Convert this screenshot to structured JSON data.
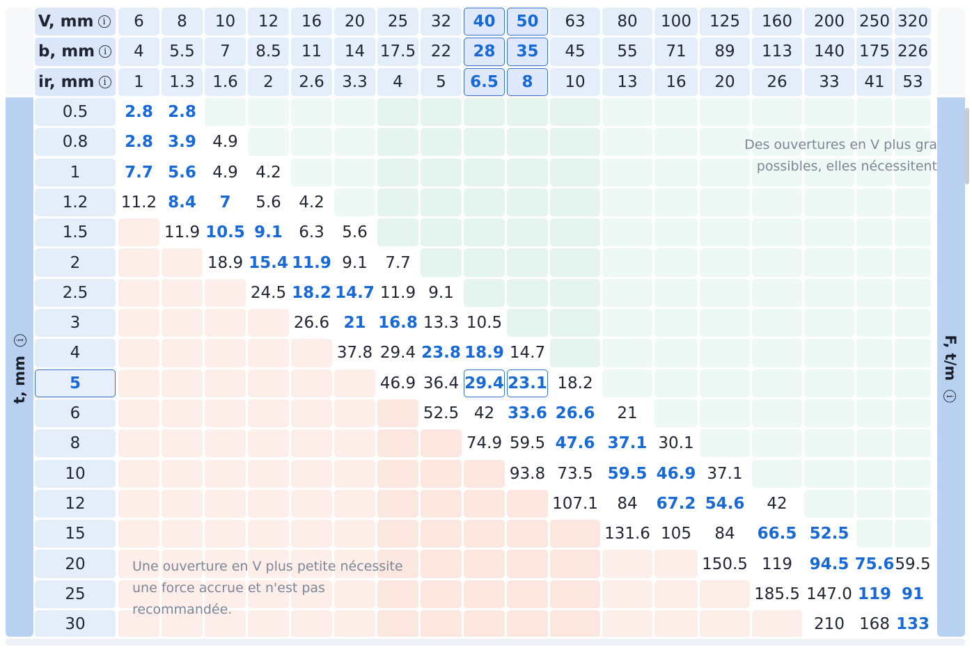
{
  "row_axis_label": "t, mm",
  "col_axis_label": "F, t/m",
  "info_glyph": "i",
  "header_rows": [
    {
      "label": "V, mm",
      "values": [
        "6",
        "8",
        "10",
        "12",
        "16",
        "20",
        "25",
        "32",
        "40",
        "50",
        "63",
        "80",
        "100",
        "125",
        "160",
        "200",
        "250",
        "320"
      ]
    },
    {
      "label": "b, mm",
      "values": [
        "4",
        "5.5",
        "7",
        "8.5",
        "11",
        "14",
        "17.5",
        "22",
        "28",
        "35",
        "45",
        "55",
        "71",
        "89",
        "113",
        "140",
        "175",
        "226"
      ]
    },
    {
      "label": "ir, mm",
      "values": [
        "1",
        "1.3",
        "1.6",
        "2",
        "2.6",
        "3.3",
        "4",
        "5",
        "6.5",
        "8",
        "10",
        "13",
        "16",
        "20",
        "26",
        "33",
        "41",
        "53"
      ]
    }
  ],
  "highlighted_columns": [
    8,
    9
  ],
  "highlighted_row": 9,
  "rows": [
    {
      "t": "0.5",
      "cells": [
        "2.8*",
        "2.8*",
        "",
        "",
        "",
        "",
        "",
        "",
        "",
        "",
        "",
        "",
        "",
        "",
        "",
        "",
        "",
        ""
      ]
    },
    {
      "t": "0.8",
      "cells": [
        "2.8*",
        "3.9*",
        "4.9",
        "",
        "",
        "",
        "",
        "",
        "",
        "",
        "",
        "",
        "",
        "",
        "",
        "",
        "",
        ""
      ]
    },
    {
      "t": "1",
      "cells": [
        "7.7*",
        "5.6*",
        "4.9",
        "4.2",
        "",
        "",
        "",
        "",
        "",
        "",
        "",
        "",
        "",
        "",
        "",
        "",
        "",
        ""
      ]
    },
    {
      "t": "1.2",
      "cells": [
        "11.2",
        "8.4*",
        "7*",
        "5.6",
        "4.2",
        "",
        "",
        "",
        "",
        "",
        "",
        "",
        "",
        "",
        "",
        "",
        "",
        ""
      ]
    },
    {
      "t": "1.5",
      "cells": [
        "",
        "11.9",
        "10.5*",
        "9.1*",
        "6.3",
        "5.6",
        "",
        "",
        "",
        "",
        "",
        "",
        "",
        "",
        "",
        "",
        "",
        ""
      ]
    },
    {
      "t": "2",
      "cells": [
        "",
        "",
        "18.9",
        "15.4*",
        "11.9*",
        "9.1",
        "7.7",
        "",
        "",
        "",
        "",
        "",
        "",
        "",
        "",
        "",
        "",
        ""
      ]
    },
    {
      "t": "2.5",
      "cells": [
        "",
        "",
        "",
        "24.5",
        "18.2*",
        "14.7*",
        "11.9",
        "9.1",
        "",
        "",
        "",
        "",
        "",
        "",
        "",
        "",
        "",
        ""
      ]
    },
    {
      "t": "3",
      "cells": [
        "",
        "",
        "",
        "",
        "26.6",
        "21*",
        "16.8*",
        "13.3",
        "10.5",
        "",
        "",
        "",
        "",
        "",
        "",
        "",
        "",
        ""
      ]
    },
    {
      "t": "4",
      "cells": [
        "",
        "",
        "",
        "",
        "",
        "37.8",
        "29.4",
        "23.8*",
        "18.9*",
        "14.7",
        "",
        "",
        "",
        "",
        "",
        "",
        "",
        ""
      ]
    },
    {
      "t": "5",
      "cells": [
        "",
        "",
        "",
        "",
        "",
        "",
        "46.9",
        "36.4",
        "29.4*",
        "23.1*",
        "18.2",
        "",
        "",
        "",
        "",
        "",
        "",
        ""
      ]
    },
    {
      "t": "6",
      "cells": [
        "",
        "",
        "",
        "",
        "",
        "",
        "",
        "52.5",
        "42",
        "33.6*",
        "26.6*",
        "21",
        "",
        "",
        "",
        "",
        "",
        ""
      ]
    },
    {
      "t": "8",
      "cells": [
        "",
        "",
        "",
        "",
        "",
        "",
        "",
        "",
        "74.9",
        "59.5",
        "47.6*",
        "37.1*",
        "30.1",
        "",
        "",
        "",
        "",
        ""
      ]
    },
    {
      "t": "10",
      "cells": [
        "",
        "",
        "",
        "",
        "",
        "",
        "",
        "",
        "",
        "93.8",
        "73.5",
        "59.5*",
        "46.9*",
        "37.1",
        "",
        "",
        "",
        ""
      ]
    },
    {
      "t": "12",
      "cells": [
        "",
        "",
        "",
        "",
        "",
        "",
        "",
        "",
        "",
        "",
        "107.1",
        "84",
        "67.2*",
        "54.6*",
        "42",
        "",
        "",
        ""
      ]
    },
    {
      "t": "15",
      "cells": [
        "",
        "",
        "",
        "",
        "",
        "",
        "",
        "",
        "",
        "",
        "",
        "131.6",
        "105",
        "84",
        "66.5*",
        "52.5*",
        "",
        ""
      ]
    },
    {
      "t": "20",
      "cells": [
        "",
        "",
        "",
        "",
        "",
        "",
        "",
        "",
        "",
        "",
        "",
        "",
        "",
        "150.5",
        "119",
        "94.5*",
        "75.6*",
        "59.5"
      ]
    },
    {
      "t": "25",
      "cells": [
        "",
        "",
        "",
        "",
        "",
        "",
        "",
        "",
        "",
        "",
        "",
        "",
        "",
        "",
        "185.5",
        "147.0",
        "119*",
        "91*"
      ]
    },
    {
      "t": "30",
      "cells": [
        "",
        "",
        "",
        "",
        "",
        "",
        "",
        "",
        "",
        "",
        "",
        "",
        "",
        "",
        "",
        "210",
        "168",
        "133*"
      ]
    }
  ],
  "notes": {
    "top_line1": "Des ouvertures en V plus gra",
    "top_line2": "possibles, elles nécessitent",
    "bottom": "Une ouverture en V plus petite nécessite une force accrue et n'est pas recommandée."
  },
  "colors": {
    "accent": "#1669d6",
    "header_bg": "#e4eefb",
    "rail_bg": "#b9d1f0",
    "too_small_zone": "#fdeeea",
    "too_large_zone": "#eef8f4"
  }
}
